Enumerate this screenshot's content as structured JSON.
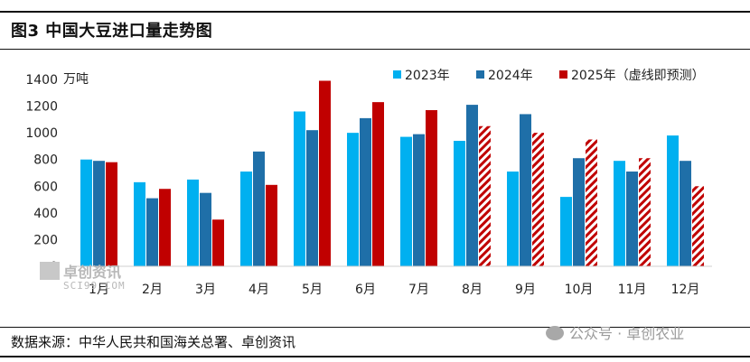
{
  "figure": {
    "title": "图3  中国大豆进口量走势图",
    "source": "数据来源：中华人民共和国海关总署、卓创资讯",
    "watermark_right": "公众号 · 卓创农业",
    "watermark_left_name": "卓创资讯",
    "watermark_left_url": "SCI99.COM"
  },
  "colors": {
    "s2023": "#00B0F0",
    "s2024": "#1F6FA8",
    "s2025": "#C00000",
    "rule": "#111111"
  },
  "chart_data": {
    "type": "bar",
    "title": "图3  中国大豆进口量走势图",
    "ylabel": "万吨",
    "ylim": [
      0,
      1400
    ],
    "yticks": [
      0,
      200,
      400,
      600,
      800,
      1000,
      1200,
      1400
    ],
    "grid": false,
    "legend_position": "top-right",
    "categories": [
      "1月",
      "2月",
      "3月",
      "4月",
      "5月",
      "6月",
      "7月",
      "8月",
      "9月",
      "10月",
      "11月",
      "12月"
    ],
    "series": [
      {
        "name": "2023年",
        "color": "#00B0F0",
        "values": [
          800,
          630,
          650,
          710,
          1160,
          1000,
          970,
          940,
          710,
          520,
          790,
          980
        ]
      },
      {
        "name": "2024年",
        "color": "#1F6FA8",
        "values": [
          790,
          510,
          550,
          860,
          1020,
          1110,
          990,
          1210,
          1140,
          810,
          710,
          790
        ]
      },
      {
        "name": "2025年（虚线即预测）",
        "color": "#C00000",
        "values": [
          780,
          580,
          350,
          610,
          1390,
          1230,
          1170,
          1050,
          1000,
          950,
          810,
          600
        ],
        "forecast_from_index": 7
      }
    ]
  }
}
